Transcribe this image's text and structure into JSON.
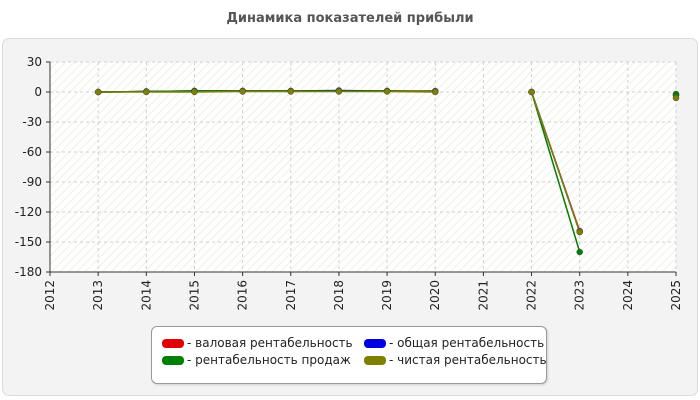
{
  "chart_data": {
    "type": "line",
    "title": "Динамика показателей прибыли",
    "xlabel": "",
    "ylabel": "",
    "categories": [
      "2012",
      "2013",
      "2014",
      "2015",
      "2016",
      "2017",
      "2018",
      "2019",
      "2020",
      "2021",
      "2022",
      "2023",
      "2024",
      "2025"
    ],
    "y_ticks": [
      "30",
      "0",
      "-30",
      "-60",
      "-90",
      "-120",
      "-150",
      "-180"
    ],
    "ylim": [
      -180,
      30
    ],
    "grid": true,
    "legend_position": "bottom",
    "series": [
      {
        "name": "- валовая рентабельность",
        "color": "#e00000",
        "values": [
          null,
          0,
          0.5,
          1,
          1,
          1,
          1,
          1,
          1,
          null,
          0,
          -139,
          null,
          -3
        ]
      },
      {
        "name": "- общая рентабельность",
        "color": "#0000e0",
        "values": [
          null,
          0,
          0.5,
          1,
          1,
          1,
          1.5,
          1,
          0.5,
          null,
          0,
          -140,
          null,
          -3
        ]
      },
      {
        "name": "- рентабельность продаж",
        "color": "#008000",
        "values": [
          null,
          0,
          0.5,
          1,
          1,
          1,
          1,
          1,
          0.5,
          null,
          0,
          -160,
          null,
          -2
        ]
      },
      {
        "name": "- чистая рентабельность",
        "color": "#808000",
        "values": [
          null,
          0,
          0,
          0,
          0.5,
          0.5,
          0.5,
          0.5,
          0,
          null,
          0,
          -140,
          null,
          -6
        ]
      }
    ]
  }
}
